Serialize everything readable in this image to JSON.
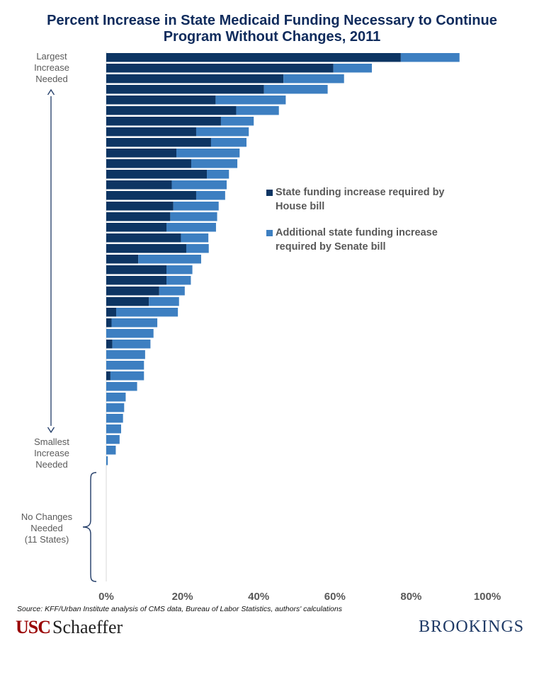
{
  "title_lines": [
    "Percent Increase in State Medicaid Funding Necessary to Continue",
    "Program Without Changes, 2011"
  ],
  "side_labels": {
    "largest": [
      "Largest",
      "Increase",
      "Needed"
    ],
    "smallest": [
      "Smallest",
      "Increase",
      "Needed"
    ],
    "no_changes": [
      "No Changes",
      "Needed",
      "(11 States)"
    ]
  },
  "legend": [
    {
      "label_lines": [
        "State funding increase required by",
        "House bill"
      ],
      "color": "#0d3563"
    },
    {
      "label_lines": [
        "Additional state funding increase",
        "required by Senate bill"
      ],
      "color": "#3d7fc1"
    }
  ],
  "source": "Source: KFF/Urban Institute analysis of CMS data, Bureau of Labor Statistics, authors' calculations",
  "logos": {
    "usc_part": "USC",
    "schaeffer_part": "Schaeffer",
    "brookings": "BROOKINGS"
  },
  "chart_data": {
    "type": "bar",
    "orientation": "horizontal",
    "stacked": true,
    "x_ticks": [
      "0%",
      "20%",
      "40%",
      "60%",
      "80%",
      "100%"
    ],
    "xlim": [
      0,
      100
    ],
    "grid": false,
    "legend_position": "right",
    "series": [
      {
        "name": "State funding increase required by House bill",
        "color": "#0d3563",
        "values": [
          77.3,
          59.6,
          46.5,
          41.4,
          28.7,
          34.1,
          30.1,
          23.6,
          27.5,
          18.4,
          22.3,
          26.4,
          17.2,
          23.6,
          17.6,
          16.8,
          15.8,
          19.6,
          21.0,
          8.4,
          15.8,
          15.8,
          13.9,
          11.2,
          2.6,
          1.4,
          0,
          1.6,
          0,
          0,
          1.1,
          0,
          0,
          0,
          0,
          0,
          0,
          0,
          0
        ]
      },
      {
        "name": "Additional state funding increase required by Senate bill",
        "color": "#3d7fc1",
        "values": [
          15.4,
          10.1,
          15.9,
          16.7,
          18.4,
          11.2,
          8.6,
          13.8,
          9.3,
          16.6,
          12.1,
          5.8,
          14.4,
          7.6,
          11.9,
          12.3,
          13.0,
          7.2,
          5.9,
          16.5,
          6.8,
          6.4,
          6.7,
          7.9,
          16.2,
          12.0,
          12.4,
          10.0,
          10.2,
          9.9,
          8.8,
          8.1,
          5.1,
          4.7,
          4.4,
          3.9,
          3.5,
          2.5,
          0.4
        ]
      }
    ]
  }
}
